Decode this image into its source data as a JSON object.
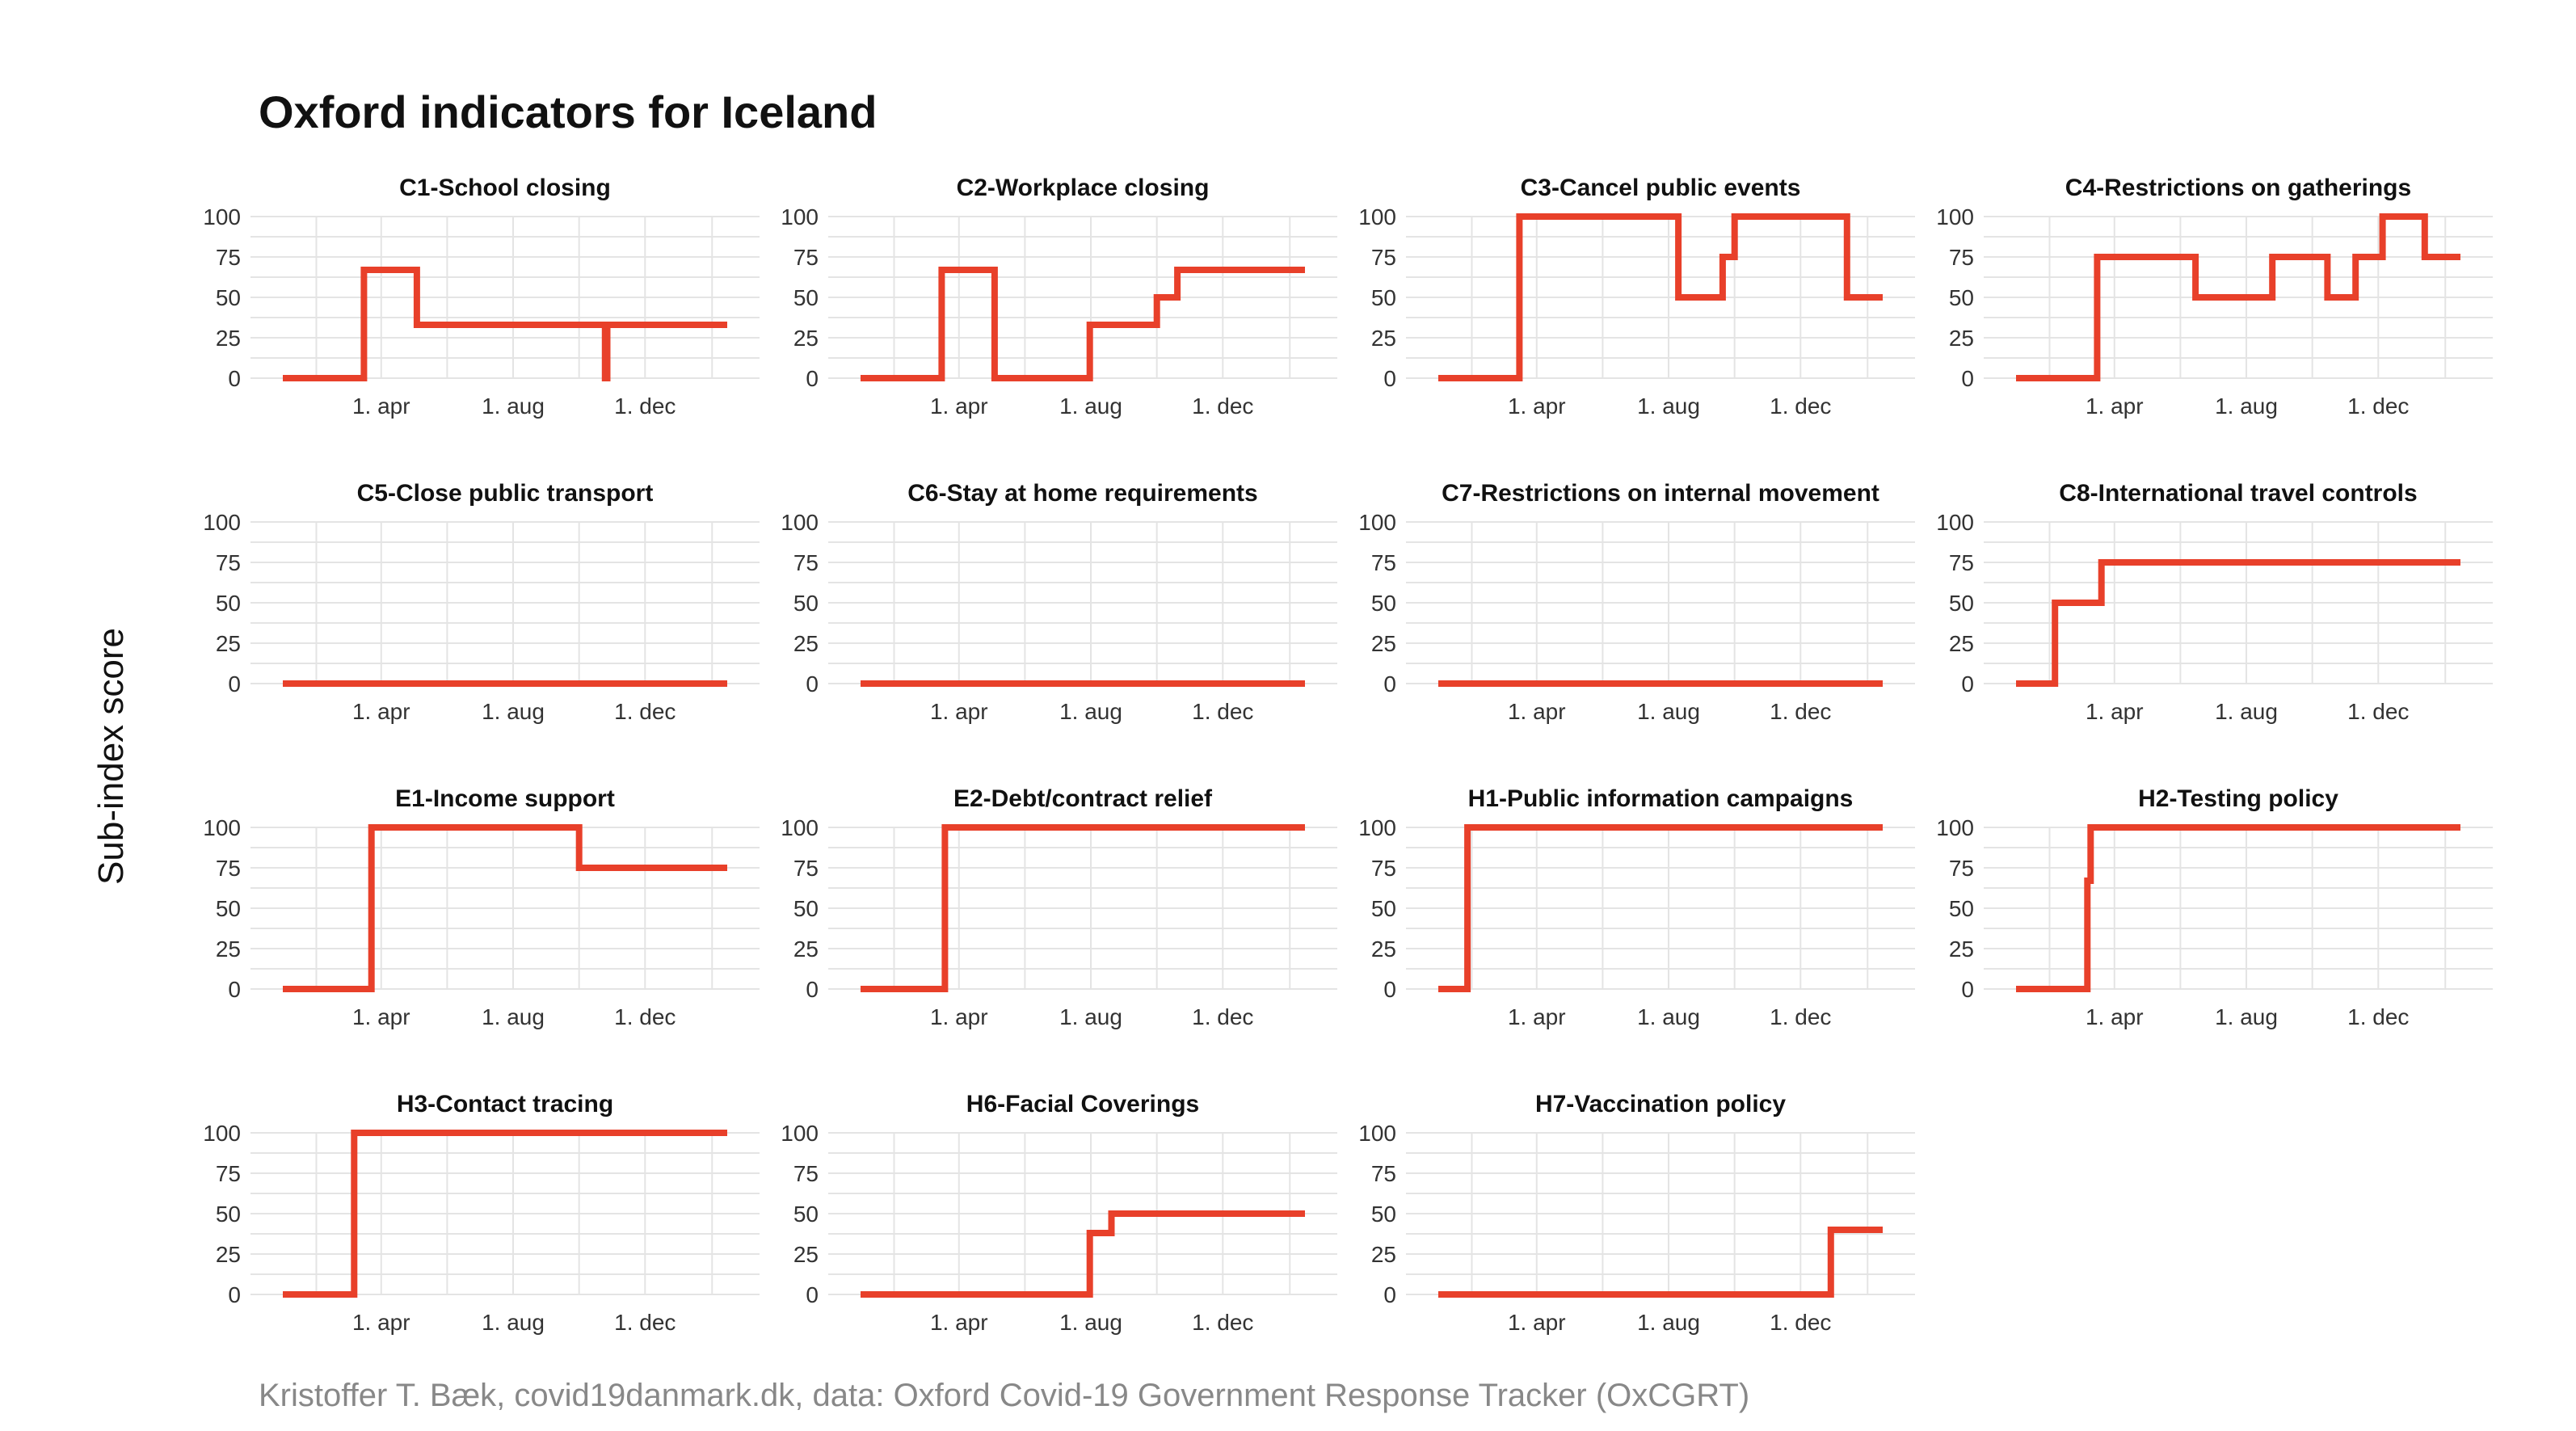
{
  "title": "Oxford indicators for Iceland",
  "ylabel": "Sub-index score",
  "caption": "Kristoffer T. Bæk, covid19danmark.dk, data: Oxford Covid-19 Government Response Tracker (OxCGRT)",
  "colors": {
    "series": "#e8402a",
    "grid": "#e4e4e4",
    "caption": "#888888"
  },
  "chart_data": [
    {
      "type": "line",
      "title": "C1-School closing",
      "ylim": [
        0,
        100
      ],
      "yticks": [
        "0",
        "25",
        "50",
        "75",
        "100"
      ],
      "xticks": [
        "1. apr",
        "1. aug",
        "1. dec"
      ],
      "grid": true,
      "series": [
        {
          "x": [
            "2020-01-01",
            "2020-03-16",
            "2020-03-16",
            "2020-05-04",
            "2020-05-04",
            "2020-10-25",
            "2020-10-25",
            "2020-10-27",
            "2020-10-27",
            "2021-02-15"
          ],
          "values": [
            0,
            0,
            67,
            67,
            33,
            33,
            0,
            0,
            33,
            33
          ]
        }
      ]
    },
    {
      "type": "line",
      "title": "C2-Workplace closing",
      "ylim": [
        0,
        100
      ],
      "yticks": [
        "0",
        "25",
        "50",
        "75",
        "100"
      ],
      "xticks": [
        "1. apr",
        "1. aug",
        "1. dec"
      ],
      "grid": true,
      "series": [
        {
          "x": [
            "2020-01-01",
            "2020-03-16",
            "2020-03-16",
            "2020-05-04",
            "2020-05-04",
            "2020-07-31",
            "2020-07-31",
            "2020-10-01",
            "2020-10-01",
            "2020-10-20",
            "2020-10-20",
            "2021-02-15"
          ],
          "values": [
            0,
            0,
            67,
            67,
            0,
            0,
            33,
            33,
            50,
            50,
            67,
            67
          ]
        }
      ]
    },
    {
      "type": "line",
      "title": "C3-Cancel public events",
      "ylim": [
        0,
        100
      ],
      "yticks": [
        "0",
        "25",
        "50",
        "75",
        "100"
      ],
      "xticks": [
        "1. apr",
        "1. aug",
        "1. dec"
      ],
      "grid": true,
      "series": [
        {
          "x": [
            "2020-01-01",
            "2020-03-16",
            "2020-03-16",
            "2020-08-10",
            "2020-08-10",
            "2020-09-20",
            "2020-09-20",
            "2020-10-01",
            "2020-10-01",
            "2021-01-13",
            "2021-01-13",
            "2021-02-15"
          ],
          "values": [
            0,
            0,
            100,
            100,
            50,
            50,
            75,
            75,
            100,
            100,
            50,
            50
          ]
        }
      ]
    },
    {
      "type": "line",
      "title": "C4-Restrictions on gatherings",
      "ylim": [
        0,
        100
      ],
      "yticks": [
        "0",
        "25",
        "50",
        "75",
        "100"
      ],
      "xticks": [
        "1. apr",
        "1. aug",
        "1. dec"
      ],
      "grid": true,
      "series": [
        {
          "x": [
            "2020-01-01",
            "2020-03-16",
            "2020-03-16",
            "2020-06-15",
            "2020-06-15",
            "2020-08-25",
            "2020-08-25",
            "2020-10-15",
            "2020-10-15",
            "2020-11-10",
            "2020-11-10",
            "2020-12-05",
            "2020-12-05",
            "2021-01-13",
            "2021-01-13",
            "2021-02-15"
          ],
          "values": [
            0,
            0,
            75,
            75,
            50,
            50,
            75,
            75,
            50,
            50,
            75,
            75,
            100,
            100,
            75,
            75
          ]
        }
      ]
    },
    {
      "type": "line",
      "title": "C5-Close public transport",
      "ylim": [
        0,
        100
      ],
      "yticks": [
        "0",
        "25",
        "50",
        "75",
        "100"
      ],
      "xticks": [
        "1. apr",
        "1. aug",
        "1. dec"
      ],
      "grid": true,
      "series": [
        {
          "x": [
            "2020-01-01",
            "2021-02-15"
          ],
          "values": [
            0,
            0
          ]
        }
      ]
    },
    {
      "type": "line",
      "title": "C6-Stay at home requirements",
      "ylim": [
        0,
        100
      ],
      "yticks": [
        "0",
        "25",
        "50",
        "75",
        "100"
      ],
      "xticks": [
        "1. apr",
        "1. aug",
        "1. dec"
      ],
      "grid": true,
      "series": [
        {
          "x": [
            "2020-01-01",
            "2021-02-15"
          ],
          "values": [
            0,
            0
          ]
        }
      ]
    },
    {
      "type": "line",
      "title": "C7-Restrictions on internal movement",
      "ylim": [
        0,
        100
      ],
      "yticks": [
        "0",
        "25",
        "50",
        "75",
        "100"
      ],
      "xticks": [
        "1. apr",
        "1. aug",
        "1. dec"
      ],
      "grid": true,
      "series": [
        {
          "x": [
            "2020-01-01",
            "2021-02-15"
          ],
          "values": [
            0,
            0
          ]
        }
      ]
    },
    {
      "type": "line",
      "title": "C8-International travel controls",
      "ylim": [
        0,
        100
      ],
      "yticks": [
        "0",
        "25",
        "50",
        "75",
        "100"
      ],
      "xticks": [
        "1. apr",
        "1. aug",
        "1. dec"
      ],
      "grid": true,
      "series": [
        {
          "x": [
            "2020-01-01",
            "2020-02-06",
            "2020-02-06",
            "2020-03-20",
            "2020-03-20",
            "2021-02-15"
          ],
          "values": [
            0,
            0,
            50,
            50,
            75,
            75
          ]
        }
      ]
    },
    {
      "type": "line",
      "title": "E1-Income support",
      "ylim": [
        0,
        100
      ],
      "yticks": [
        "0",
        "25",
        "50",
        "75",
        "100"
      ],
      "xticks": [
        "1. apr",
        "1. aug",
        "1. dec"
      ],
      "grid": true,
      "series": [
        {
          "x": [
            "2020-01-01",
            "2020-03-23",
            "2020-03-23",
            "2020-10-01",
            "2020-10-01",
            "2021-02-15"
          ],
          "values": [
            0,
            0,
            100,
            100,
            75,
            75
          ]
        }
      ]
    },
    {
      "type": "line",
      "title": "E2-Debt/contract relief",
      "ylim": [
        0,
        100
      ],
      "yticks": [
        "0",
        "25",
        "50",
        "75",
        "100"
      ],
      "xticks": [
        "1. apr",
        "1. aug",
        "1. dec"
      ],
      "grid": true,
      "series": [
        {
          "x": [
            "2020-01-01",
            "2020-03-19",
            "2020-03-19",
            "2021-02-15"
          ],
          "values": [
            0,
            0,
            100,
            100
          ]
        }
      ]
    },
    {
      "type": "line",
      "title": "H1-Public information campaigns",
      "ylim": [
        0,
        100
      ],
      "yticks": [
        "0",
        "25",
        "50",
        "75",
        "100"
      ],
      "xticks": [
        "1. apr",
        "1. aug",
        "1. dec"
      ],
      "grid": true,
      "series": [
        {
          "x": [
            "2020-01-01",
            "2020-01-28",
            "2020-01-28",
            "2021-02-15"
          ],
          "values": [
            0,
            0,
            100,
            100
          ]
        }
      ]
    },
    {
      "type": "line",
      "title": "H2-Testing policy",
      "ylim": [
        0,
        100
      ],
      "yticks": [
        "0",
        "25",
        "50",
        "75",
        "100"
      ],
      "xticks": [
        "1. apr",
        "1. aug",
        "1. dec"
      ],
      "grid": true,
      "series": [
        {
          "x": [
            "2020-01-01",
            "2020-03-07",
            "2020-03-07",
            "2020-03-10",
            "2020-03-10",
            "2021-02-15"
          ],
          "values": [
            0,
            0,
            67,
            67,
            100,
            100
          ]
        }
      ]
    },
    {
      "type": "line",
      "title": "H3-Contact tracing",
      "ylim": [
        0,
        100
      ],
      "yticks": [
        "0",
        "25",
        "50",
        "75",
        "100"
      ],
      "xticks": [
        "1. apr",
        "1. aug",
        "1. dec"
      ],
      "grid": true,
      "series": [
        {
          "x": [
            "2020-01-01",
            "2020-03-07",
            "2020-03-07",
            "2021-02-15"
          ],
          "values": [
            0,
            0,
            100,
            100
          ]
        }
      ]
    },
    {
      "type": "line",
      "title": "H6-Facial Coverings",
      "ylim": [
        0,
        100
      ],
      "yticks": [
        "0",
        "25",
        "50",
        "75",
        "100"
      ],
      "xticks": [
        "1. apr",
        "1. aug",
        "1. dec"
      ],
      "grid": true,
      "series": [
        {
          "x": [
            "2020-01-01",
            "2020-07-31",
            "2020-07-31",
            "2020-08-20",
            "2020-08-20",
            "2021-02-15"
          ],
          "values": [
            0,
            0,
            38,
            38,
            50,
            50
          ]
        }
      ]
    },
    {
      "type": "line",
      "title": "H7-Vaccination policy",
      "ylim": [
        0,
        100
      ],
      "yticks": [
        "0",
        "25",
        "50",
        "75",
        "100"
      ],
      "xticks": [
        "1. apr",
        "1. aug",
        "1. dec"
      ],
      "grid": true,
      "series": [
        {
          "x": [
            "2020-01-01",
            "2020-12-29",
            "2020-12-29",
            "2021-02-15"
          ],
          "values": [
            0,
            0,
            40,
            40
          ]
        }
      ]
    }
  ]
}
